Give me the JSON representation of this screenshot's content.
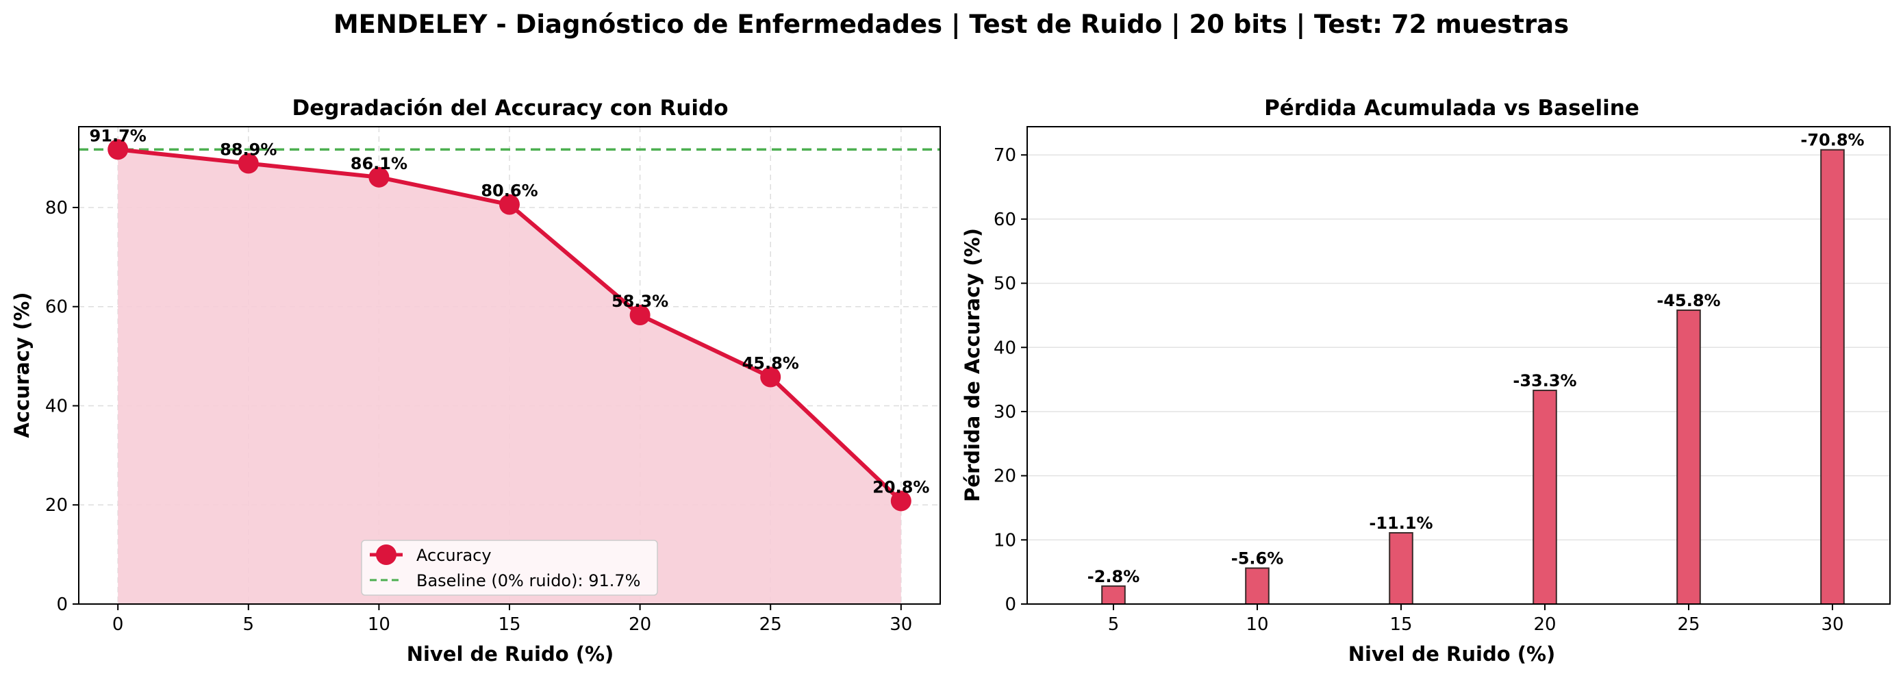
{
  "suptitle": "MENDELEY - Diagnóstico de Enfermedades | Test de Ruido | 20 bits | Test: 72 muestras",
  "chart_data": [
    {
      "type": "line",
      "title": "Degradación del Accuracy con Ruido",
      "xlabel": "Nivel de Ruido (%)",
      "ylabel": "Accuracy (%)",
      "x": [
        0,
        5,
        10,
        15,
        20,
        25,
        30
      ],
      "series": [
        {
          "name": "Accuracy",
          "values": [
            91.7,
            88.9,
            86.1,
            80.6,
            58.3,
            45.8,
            20.8
          ],
          "labels": [
            "91.7%",
            "88.9%",
            "86.1%",
            "80.6%",
            "58.3%",
            "45.8%",
            "20.8%"
          ]
        }
      ],
      "baseline": {
        "name": "Baseline (0% ruido): 91.7%",
        "value": 91.7
      },
      "xticks": [
        0,
        5,
        10,
        15,
        20,
        25,
        30
      ],
      "yticks": [
        0,
        20,
        40,
        60,
        80
      ],
      "xlim": [
        -1.5,
        31.5
      ],
      "ylim": [
        0,
        96.3
      ],
      "grid": true,
      "legend": "bottom-center",
      "colors": {
        "line": "#dc143c",
        "fill": "#f7cdd7",
        "baseline": "#4caf50"
      }
    },
    {
      "type": "bar",
      "title": "Pérdida Acumulada vs Baseline",
      "xlabel": "Nivel de Ruido (%)",
      "ylabel": "Pérdida de Accuracy (%)",
      "categories": [
        5,
        10,
        15,
        20,
        25,
        30
      ],
      "values": [
        2.8,
        5.6,
        11.1,
        33.3,
        45.8,
        70.8
      ],
      "labels": [
        "-2.8%",
        "-5.6%",
        "-11.1%",
        "-33.3%",
        "-45.8%",
        "-70.8%"
      ],
      "xticks": [
        5,
        10,
        15,
        20,
        25,
        30
      ],
      "yticks": [
        0,
        10,
        20,
        30,
        40,
        50,
        60,
        70
      ],
      "xlim": [
        2.0,
        32.0
      ],
      "ylim": [
        0,
        74.4
      ],
      "grid": "y",
      "colors": {
        "bar": "#e4566f",
        "edge": "#3a2a2a"
      }
    }
  ]
}
